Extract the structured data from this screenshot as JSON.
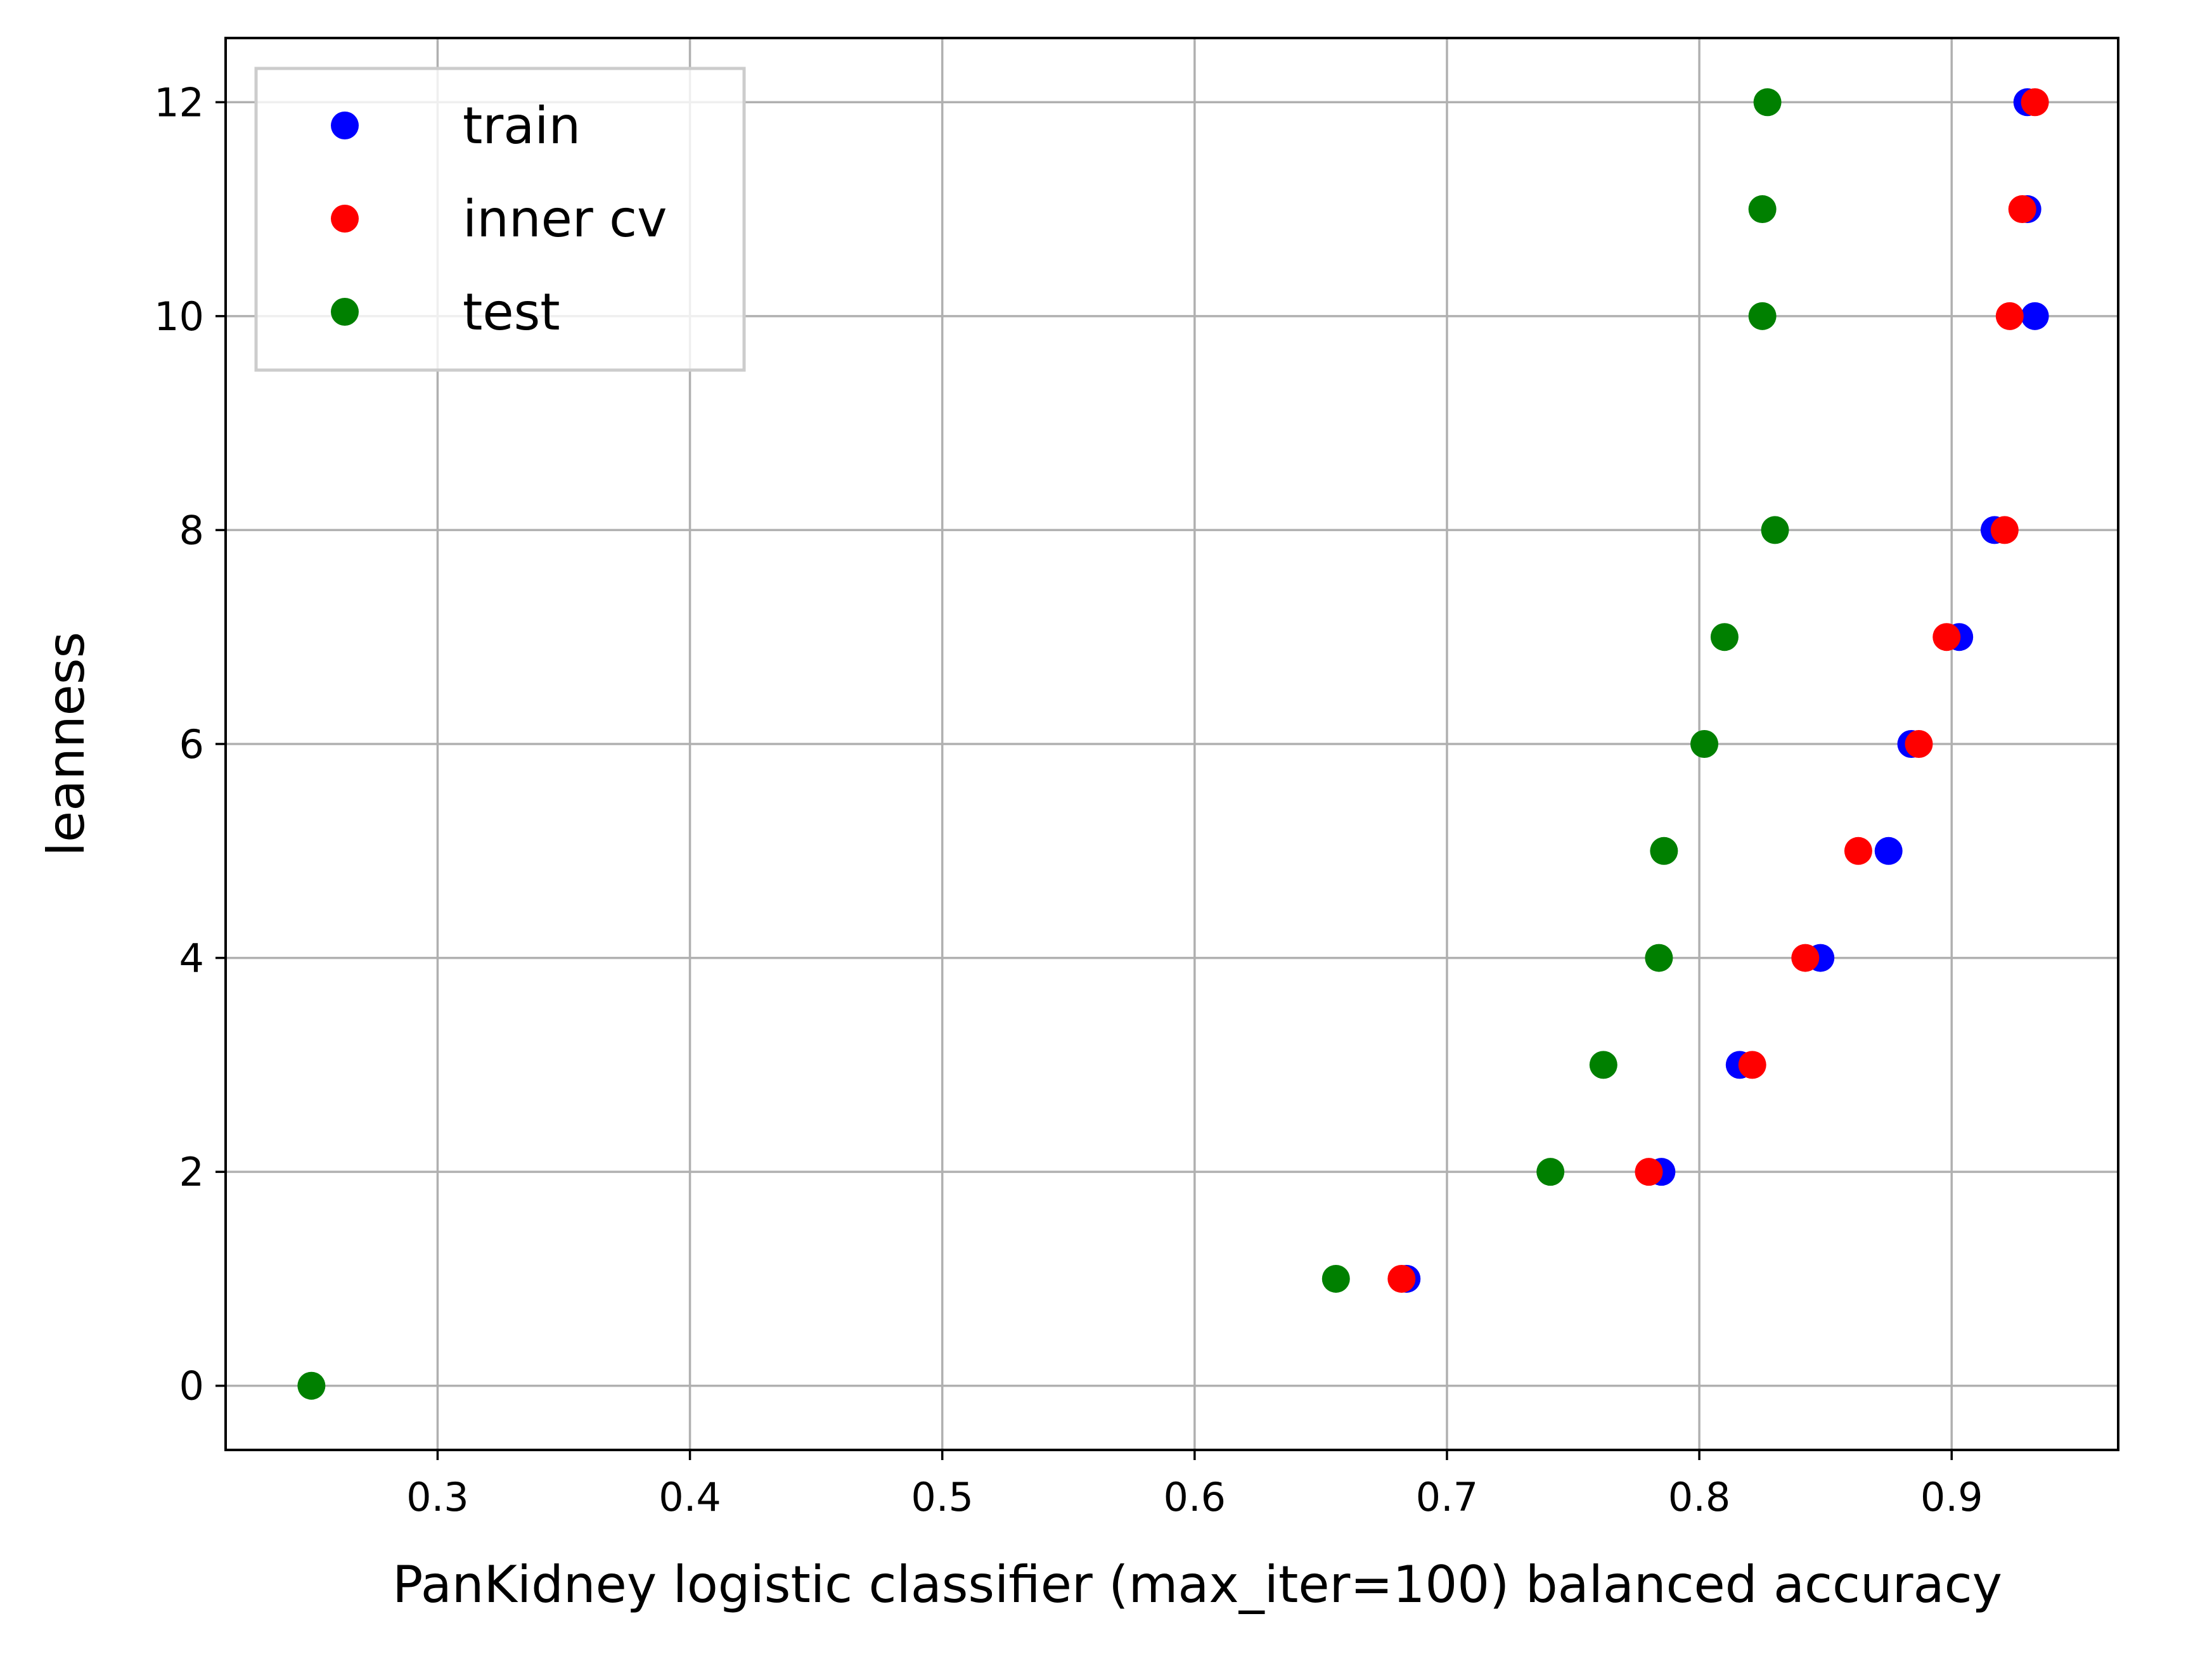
{
  "chart_data": {
    "type": "scatter",
    "title": "",
    "xlabel": "PanKidney logistic classifier (max_iter=100) balanced accuracy",
    "ylabel": "leanness",
    "xlim": [
      0.216,
      0.966
    ],
    "ylim": [
      -0.6,
      12.6
    ],
    "xticks": [
      0.3,
      0.4,
      0.5,
      0.6,
      0.7,
      0.8,
      0.9
    ],
    "xtick_labels": [
      "0.3",
      "0.4",
      "0.5",
      "0.6",
      "0.7",
      "0.8",
      "0.9"
    ],
    "yticks": [
      0,
      2,
      4,
      6,
      8,
      10,
      12
    ],
    "ytick_labels": [
      "0",
      "2",
      "4",
      "6",
      "8",
      "10",
      "12"
    ],
    "grid": true,
    "legend_position": "top-left",
    "series": [
      {
        "name": "train",
        "color": "#0000ff",
        "points": [
          {
            "x": 0.684,
            "y": 1
          },
          {
            "x": 0.785,
            "y": 2
          },
          {
            "x": 0.816,
            "y": 3
          },
          {
            "x": 0.848,
            "y": 4
          },
          {
            "x": 0.875,
            "y": 5
          },
          {
            "x": 0.884,
            "y": 6
          },
          {
            "x": 0.903,
            "y": 7
          },
          {
            "x": 0.917,
            "y": 8
          },
          {
            "x": 0.933,
            "y": 10
          },
          {
            "x": 0.93,
            "y": 11
          },
          {
            "x": 0.93,
            "y": 12
          }
        ]
      },
      {
        "name": "inner cv",
        "color": "#ff0000",
        "points": [
          {
            "x": 0.682,
            "y": 1
          },
          {
            "x": 0.78,
            "y": 2
          },
          {
            "x": 0.821,
            "y": 3
          },
          {
            "x": 0.842,
            "y": 4
          },
          {
            "x": 0.863,
            "y": 5
          },
          {
            "x": 0.887,
            "y": 6
          },
          {
            "x": 0.898,
            "y": 7
          },
          {
            "x": 0.921,
            "y": 8
          },
          {
            "x": 0.923,
            "y": 10
          },
          {
            "x": 0.928,
            "y": 11
          },
          {
            "x": 0.933,
            "y": 12
          }
        ]
      },
      {
        "name": "test",
        "color": "#008000",
        "points": [
          {
            "x": 0.25,
            "y": 0
          },
          {
            "x": 0.656,
            "y": 1
          },
          {
            "x": 0.741,
            "y": 2
          },
          {
            "x": 0.762,
            "y": 3
          },
          {
            "x": 0.784,
            "y": 4
          },
          {
            "x": 0.786,
            "y": 5
          },
          {
            "x": 0.802,
            "y": 6
          },
          {
            "x": 0.81,
            "y": 7
          },
          {
            "x": 0.83,
            "y": 8
          },
          {
            "x": 0.825,
            "y": 10
          },
          {
            "x": 0.825,
            "y": 11
          },
          {
            "x": 0.827,
            "y": 12
          }
        ]
      }
    ]
  }
}
